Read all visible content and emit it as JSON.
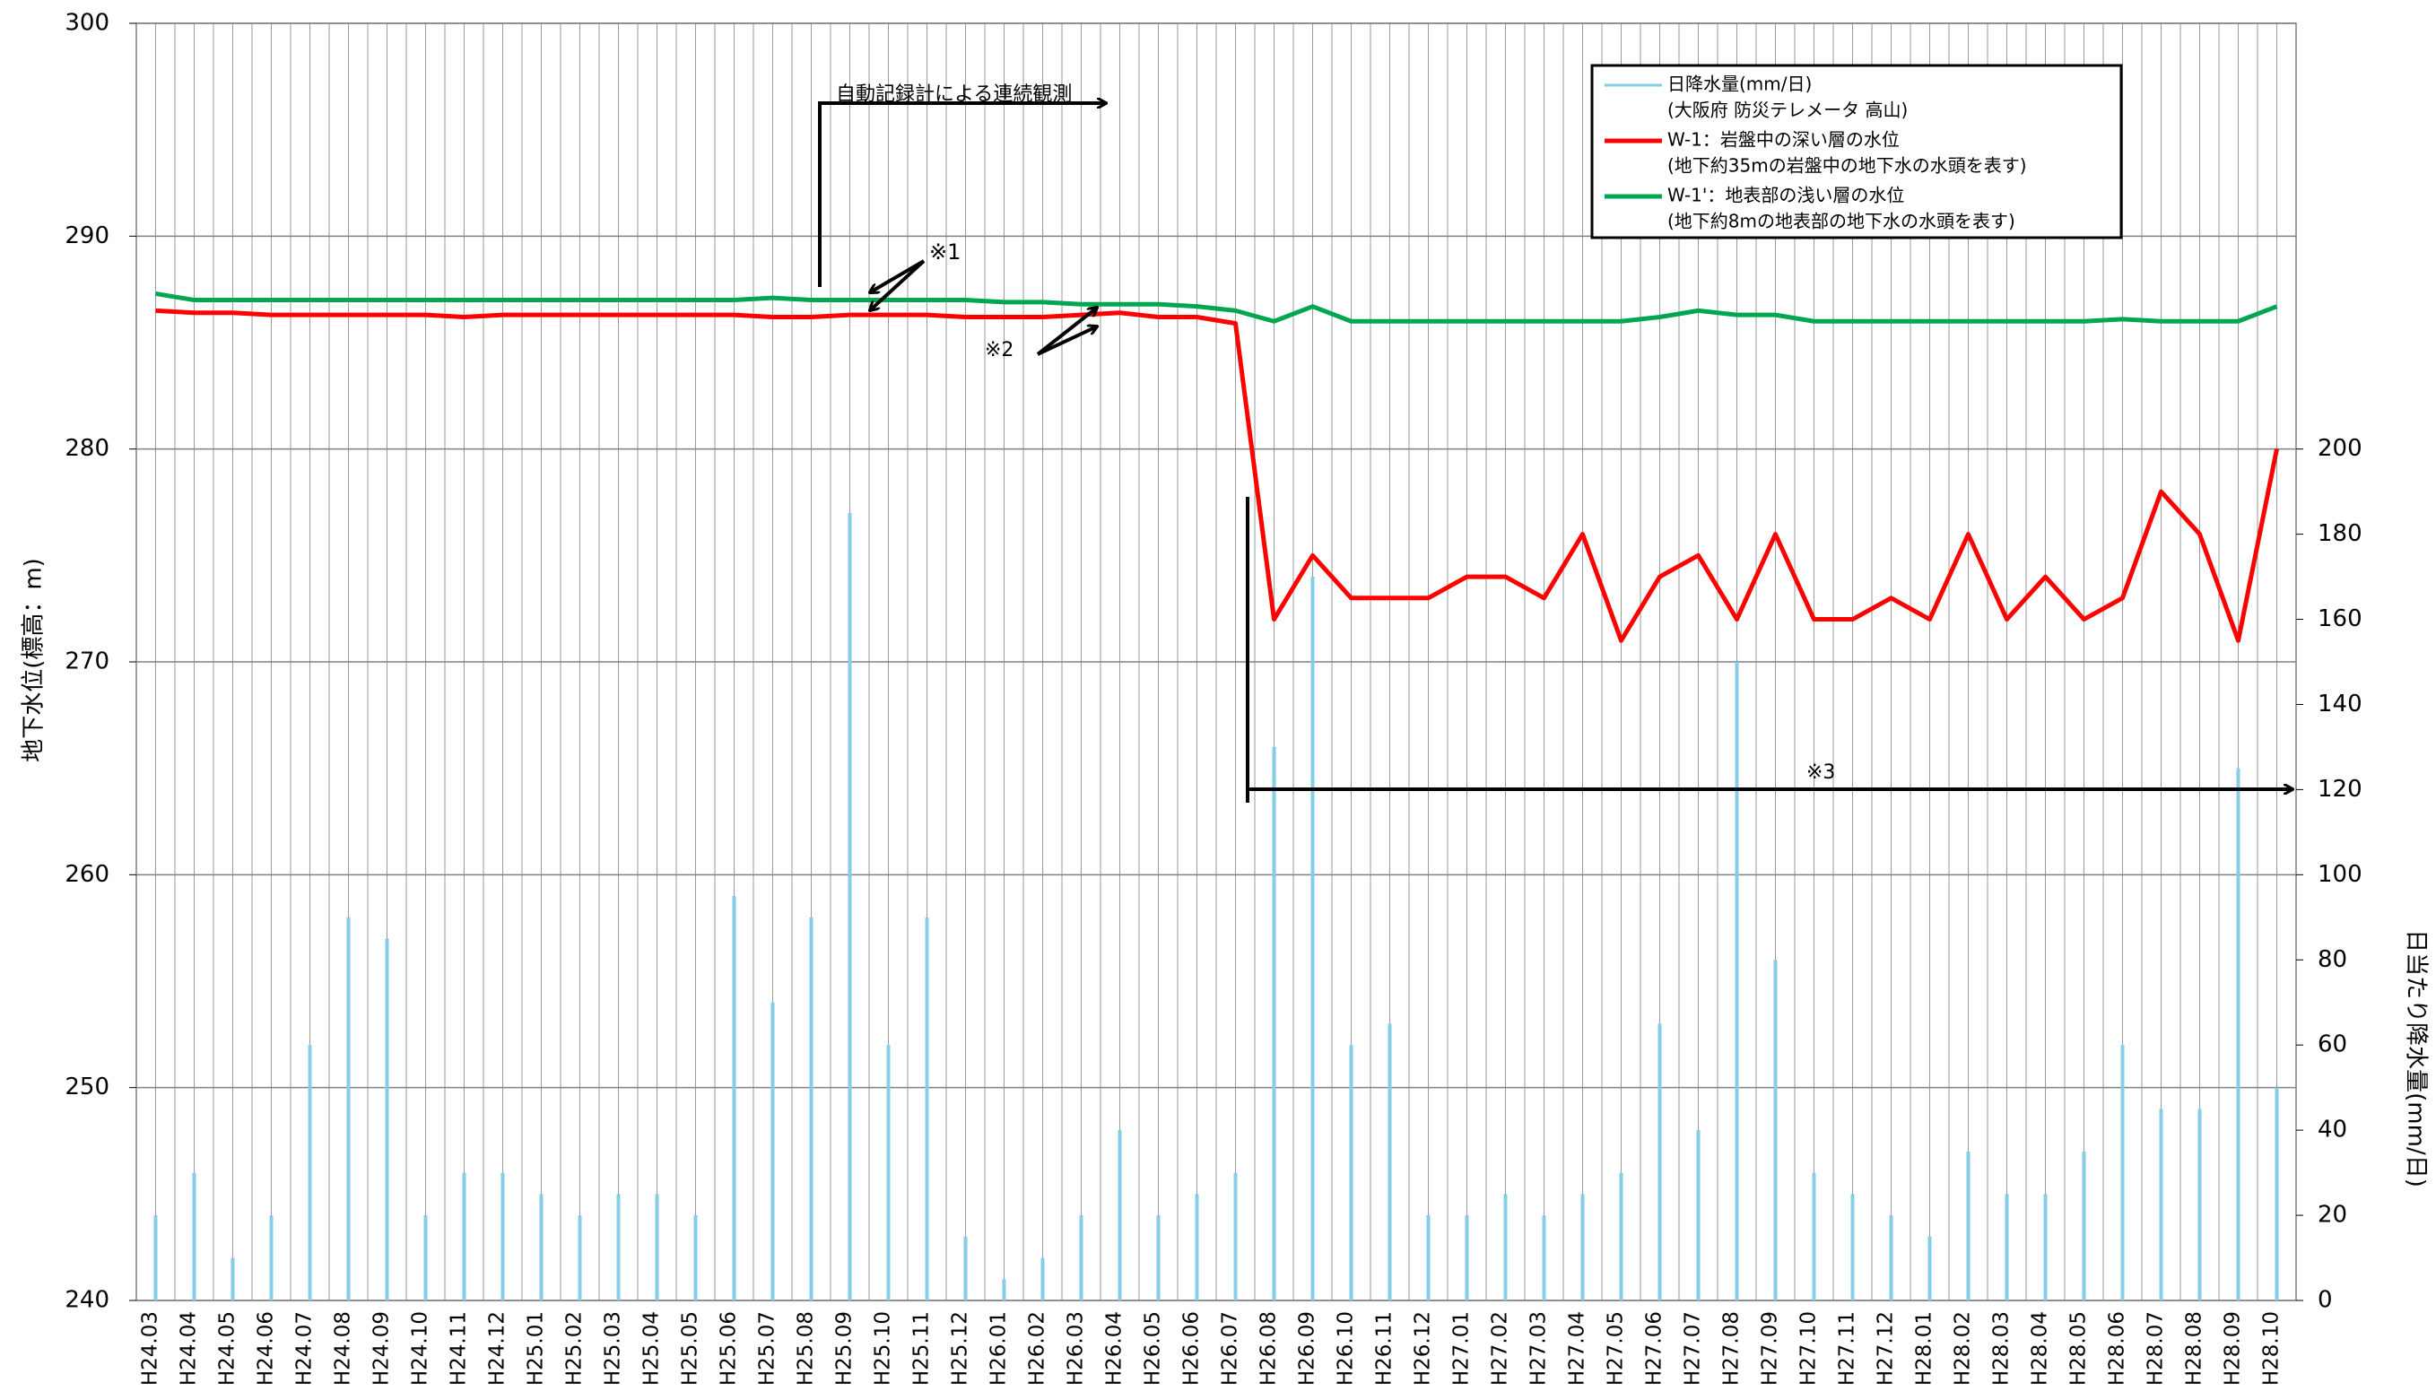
{
  "chart_data": {
    "type": "line",
    "y_label": "地下水位(標高：m)",
    "y2_label": "日当たり降水量(mm/日)",
    "categories": [
      "H24.03",
      "H24.04",
      "H24.05",
      "H24.06",
      "H24.07",
      "H24.08",
      "H24.09",
      "H24.10",
      "H24.11",
      "H24.12",
      "H25.01",
      "H25.02",
      "H25.03",
      "H25.04",
      "H25.05",
      "H25.06",
      "H25.07",
      "H25.08",
      "H25.09",
      "H25.10",
      "H25.11",
      "H25.12",
      "H26.01",
      "H26.02",
      "H26.03",
      "H26.04",
      "H26.05",
      "H26.06",
      "H26.07",
      "H26.08",
      "H26.09",
      "H26.10",
      "H26.11",
      "H26.12",
      "H27.01",
      "H27.02",
      "H27.03",
      "H27.04",
      "H27.05",
      "H27.06",
      "H27.07",
      "H27.08",
      "H27.09",
      "H27.10",
      "H27.11",
      "H27.12",
      "H28.01",
      "H28.02",
      "H28.03",
      "H28.04",
      "H28.05",
      "H28.06",
      "H28.07",
      "H28.08",
      "H28.09",
      "H28.10"
    ],
    "ylim": [
      240,
      300
    ],
    "yticks": [
      240,
      250,
      260,
      270,
      280,
      290,
      300
    ],
    "y2lim": [
      0,
      300
    ],
    "y2ticks": [
      0,
      20,
      40,
      60,
      80,
      100,
      120,
      140,
      160,
      180,
      200
    ],
    "grid": true,
    "series": [
      {
        "name": "日降水量(mm/日)",
        "note": "(大阪府 防災テレメータ 高山)",
        "type": "bar",
        "axis": "y2",
        "color": "#87cdea",
        "values": [
          20,
          30,
          10,
          20,
          60,
          90,
          85,
          20,
          30,
          30,
          25,
          20,
          25,
          25,
          20,
          95,
          70,
          90,
          185,
          60,
          90,
          15,
          5,
          10,
          20,
          40,
          20,
          25,
          30,
          130,
          170,
          60,
          65,
          20,
          20,
          25,
          20,
          25,
          30,
          65,
          40,
          150,
          80,
          30,
          25,
          20,
          15,
          35,
          25,
          25,
          35,
          60,
          45,
          45,
          125,
          50
        ]
      },
      {
        "name": "W-1：岩盤中の深い層の水位",
        "note": "(地下約35mの岩盤中の地下水の水頭を表す)",
        "type": "line",
        "color": "#ff0000",
        "values": [
          286.5,
          286.4,
          286.4,
          286.3,
          286.3,
          286.3,
          286.3,
          286.3,
          286.2,
          286.3,
          286.3,
          286.3,
          286.3,
          286.3,
          286.3,
          286.3,
          286.2,
          286.2,
          286.3,
          286.3,
          286.3,
          286.2,
          286.2,
          286.2,
          286.3,
          286.4,
          286.2,
          286.2,
          285.9,
          272,
          275,
          273,
          273,
          273,
          274,
          274,
          273,
          276,
          271,
          274,
          275,
          272,
          276,
          272,
          272,
          273,
          272,
          276,
          272,
          274,
          272,
          273,
          278,
          276,
          271,
          280
        ]
      },
      {
        "name": "W-1'：地表部の浅い層の水位",
        "note": "(地下約8mの地表部の地下水の水頭を表す)",
        "type": "line",
        "color": "#00a650",
        "values": [
          287.3,
          287.0,
          287.0,
          287.0,
          287.0,
          287.0,
          287.0,
          287.0,
          287.0,
          287.0,
          287.0,
          287.0,
          287.0,
          287.0,
          287.0,
          287.0,
          287.1,
          287.0,
          287.0,
          287.0,
          287.0,
          287.0,
          286.9,
          286.9,
          286.8,
          286.8,
          286.8,
          286.7,
          286.5,
          286.0,
          286.7,
          286.0,
          286.0,
          286.0,
          286,
          286,
          286,
          286,
          286,
          286.2,
          286.5,
          286.3,
          286.3,
          286,
          286,
          286,
          286,
          286,
          286,
          286,
          286,
          286.1,
          286,
          286,
          286,
          286.7
        ]
      }
    ],
    "annotations": [
      {
        "text": "自動記録計による連続観測"
      },
      {
        "text": "※1"
      },
      {
        "text": "※2"
      },
      {
        "text": "※3"
      }
    ]
  }
}
